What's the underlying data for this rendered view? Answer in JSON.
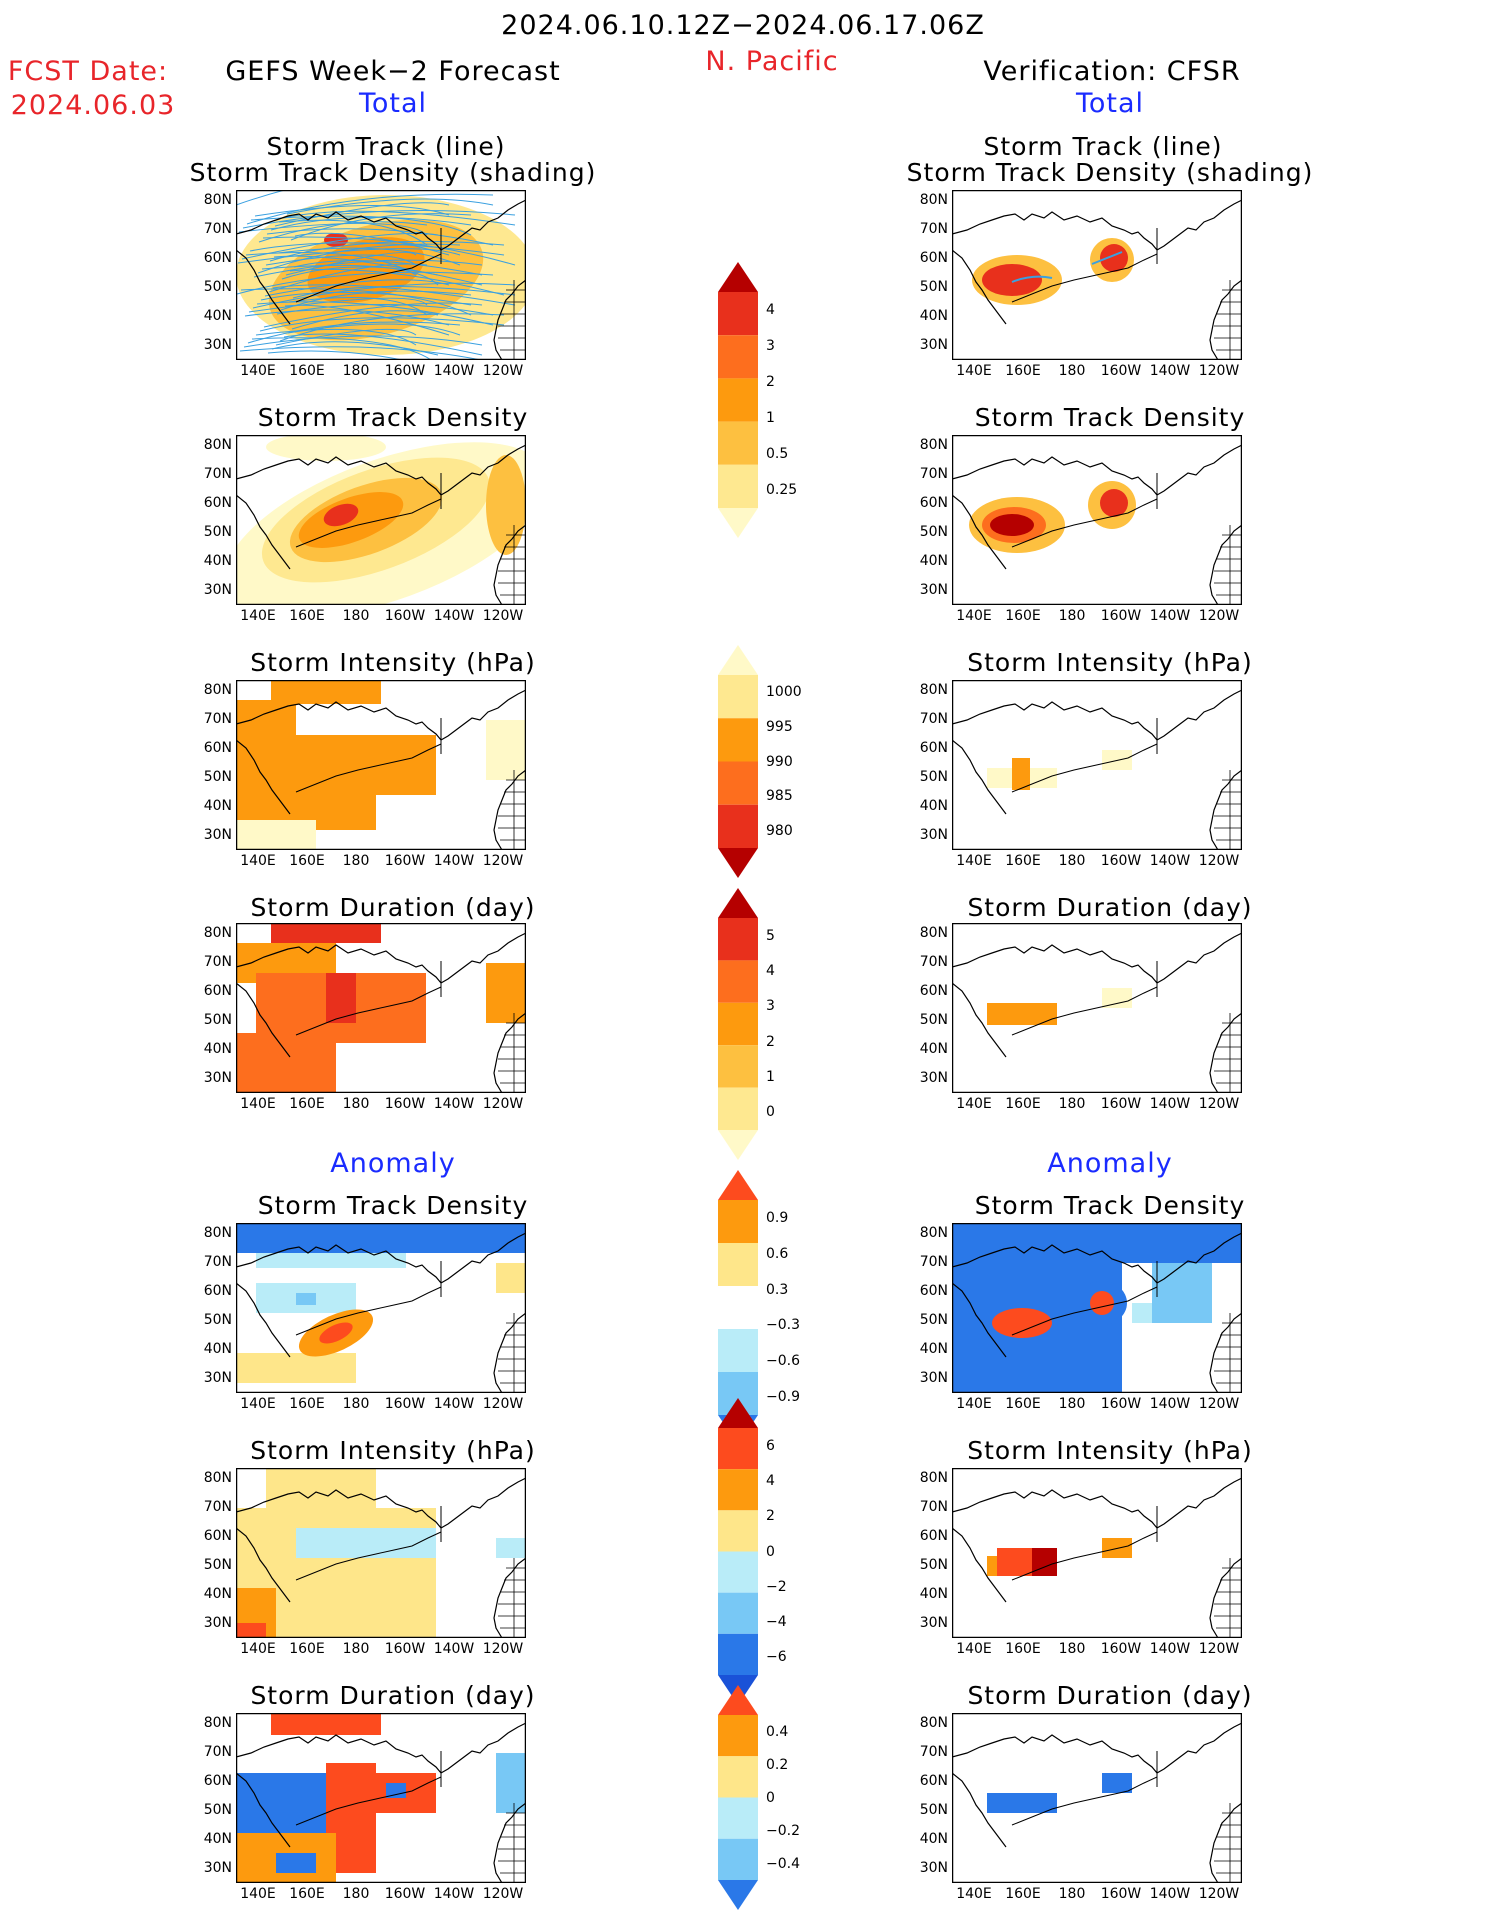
{
  "header": {
    "date_range": "2024.06.10.12Z−2024.06.17.06Z",
    "region": "N. Pacific",
    "fcst_label": "FCST Date:",
    "fcst_date": "2024.06.03",
    "left_title": "GEFS Week−2 Forecast",
    "right_title": "Verification: CFSR",
    "total_label": "Total",
    "anomaly_label": "Anomaly"
  },
  "panel_titles": {
    "track_line": "Storm Track (line)",
    "track_shading": "Storm Track Density (shading)",
    "density": "Storm Track Density",
    "intensity": "Storm Intensity (hPa)",
    "duration": "Storm Duration (day)"
  },
  "axes": {
    "lat_labels": [
      "80N",
      "70N",
      "60N",
      "50N",
      "40N",
      "30N"
    ],
    "lon_labels": [
      "140E",
      "160E",
      "180",
      "160W",
      "140W",
      "120W"
    ]
  },
  "colorbars": [
    {
      "name": "density-total",
      "labels": [
        "4",
        "3",
        "2",
        "1",
        "0.5",
        "0.25"
      ],
      "colors": [
        "#b50000",
        "#e8301c",
        "#fd6e1e",
        "#fd9a0e",
        "#fdc040",
        "#fee890",
        "#fff9c8"
      ]
    },
    {
      "name": "intensity-total",
      "labels": [
        "1000",
        "995",
        "990",
        "985",
        "980"
      ],
      "colors": [
        "#fff9c8",
        "#fee890",
        "#fd9a0e",
        "#fd6e1e",
        "#e8301c",
        "#b50000"
      ]
    },
    {
      "name": "duration-total",
      "labels": [
        "5",
        "4",
        "3",
        "2",
        "1",
        "0"
      ],
      "colors": [
        "#b50000",
        "#e8301c",
        "#fd6e1e",
        "#fd9a0e",
        "#fdc040",
        "#fee890",
        "#fff9c8"
      ]
    },
    {
      "name": "density-anom",
      "labels": [
        "0.9",
        "0.6",
        "0.3",
        "−0.3",
        "−0.6",
        "−0.9"
      ],
      "colors": [
        "#fd4b1e",
        "#fd9a0e",
        "#fee68a",
        "#ffffff",
        "#b9ecf8",
        "#78c8f5",
        "#2a78e8"
      ]
    },
    {
      "name": "intensity-anom",
      "labels": [
        "6",
        "4",
        "2",
        "0",
        "−2",
        "−4",
        "−6"
      ],
      "colors": [
        "#b50000",
        "#fd4b1e",
        "#fd9a0e",
        "#fee68a",
        "#b9ecf8",
        "#78c8f5",
        "#2a78e8",
        "#1a52d8"
      ]
    },
    {
      "name": "duration-anom",
      "labels": [
        "0.4",
        "0.2",
        "0",
        "−0.2",
        "−0.4"
      ],
      "colors": [
        "#fd4b1e",
        "#fd9a0e",
        "#fee68a",
        "#b9ecf8",
        "#78c8f5",
        "#2a78e8"
      ]
    }
  ],
  "colors": {
    "red_label": "#e8252a",
    "blue_label": "#1a2bff",
    "track_line": "#3aa0e0"
  }
}
